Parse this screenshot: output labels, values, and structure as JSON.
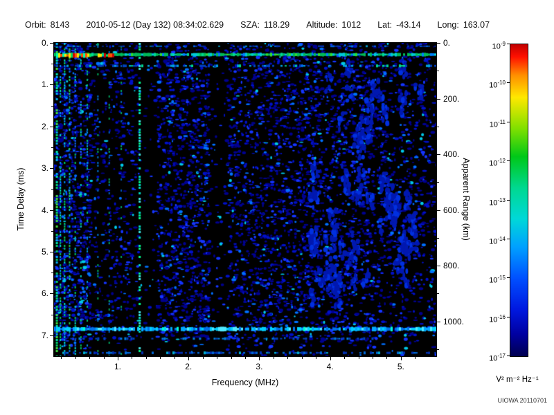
{
  "header": {
    "orbit_label": "Orbit:",
    "orbit_value": "8143",
    "datetime_value": "2010-05-12 (Day 132) 08:34:02.629",
    "sza_label": "SZA:",
    "sza_value": "118.29",
    "altitude_label": "Altitude:",
    "altitude_value": "1012",
    "lat_label": "Lat:",
    "lat_value": "-43.14",
    "long_label": "Long:",
    "long_value": "163.07"
  },
  "footer": {
    "credit": "UIOWA 20110701"
  },
  "chart_data": {
    "type": "heatmap",
    "summary": "Radar sounder ionogram spectrogram: mostly dark field of faint blue noise blobs, dense cyan-green vertical plasma-line streaks below ~0.6 MHz, a bright multicolor horizontal band near 0.3 ms delay, a bright cyan horizontal echo band near 6.85 ms (~1000 km apparent range), dark vertical gaps near 1.4 and 2.4 MHz, and a dashed cyan vertical line near 1.3 MHz.",
    "background": "#000000",
    "x_axis": {
      "label": "Frequency (MHz)",
      "min": 0.1,
      "max": 5.5,
      "major_ticks": [
        1,
        2,
        3,
        4,
        5
      ],
      "tick_labels": [
        "1.",
        "2.",
        "3.",
        "4.",
        "5."
      ],
      "minor_step": 0.2
    },
    "y_axis": {
      "label": "Time Delay (ms)",
      "min": 0,
      "max": 7.5,
      "major_ticks": [
        0,
        1,
        2,
        3,
        4,
        5,
        6,
        7
      ],
      "tick_labels": [
        "0.",
        "1.",
        "2.",
        "3.",
        "4.",
        "5.",
        "6.",
        "7."
      ],
      "minor_step": 0.5
    },
    "y2_axis": {
      "label": "Apparent Range (km)",
      "min": 0,
      "max": 1125,
      "major_ticks": [
        0,
        200,
        400,
        600,
        800,
        1000
      ],
      "tick_labels": [
        "0.",
        "200.",
        "400.",
        "600.",
        "800.",
        "1000."
      ],
      "minor_step": 100
    },
    "colorbar": {
      "base": "10",
      "tick_exponents": [
        "-9",
        "-10",
        "-11",
        "-12",
        "-13",
        "-14",
        "-15",
        "-16",
        "-17"
      ],
      "unit_label": "V² m⁻² Hz⁻¹",
      "gradient_stops": [
        [
          0,
          "#c00000"
        ],
        [
          0.04,
          "#ff1000"
        ],
        [
          0.1,
          "#ff9000"
        ],
        [
          0.17,
          "#ffe800"
        ],
        [
          0.27,
          "#80e000"
        ],
        [
          0.36,
          "#00c818"
        ],
        [
          0.46,
          "#00d890"
        ],
        [
          0.56,
          "#00d8d8"
        ],
        [
          0.65,
          "#00a0ff"
        ],
        [
          0.75,
          "#0050ff"
        ],
        [
          0.85,
          "#0018e0"
        ],
        [
          0.93,
          "#0000a0"
        ],
        [
          1,
          "#000050"
        ]
      ]
    },
    "features": {
      "seed": 1337,
      "noise": {
        "attempts": 9000,
        "palette": [
          [
            "#000090",
            0.5
          ],
          [
            "#0010c8",
            0.75
          ],
          [
            "#1535ff",
            0.9
          ],
          [
            "#0070ff",
            0.975
          ],
          [
            "#00c8e8",
            1.0
          ]
        ],
        "density_regions": [
          {
            "f0": 0.1,
            "f1": 0.62,
            "density": 1.0
          },
          {
            "f0": 0.62,
            "f1": 1.3,
            "density": 0.38
          },
          {
            "f0": 1.3,
            "f1": 1.56,
            "density": 0.12
          },
          {
            "f0": 1.56,
            "f1": 2.3,
            "density": 0.8
          },
          {
            "f0": 2.3,
            "f1": 2.55,
            "density": 0.15
          },
          {
            "f0": 2.55,
            "f1": 3.75,
            "density": 0.75
          },
          {
            "f0": 3.75,
            "f1": 4.8,
            "density": 0.65
          },
          {
            "f0": 4.8,
            "f1": 5.5,
            "density": 0.45
          }
        ],
        "deep_time_cutoff_ms": 7.15,
        "deep_time_density": 0.3
      },
      "clusters": {
        "count": 70,
        "f0": 3.7,
        "f1": 5.25,
        "t0": 0.5,
        "t1": 6.2,
        "blob_per": 10,
        "color": "#0018b0",
        "color2": "#0030e0"
      },
      "vertical_streaks": [
        {
          "f": 0.14,
          "width": 3,
          "duty": 0.7,
          "colors": [
            "#00d070",
            "#00e8b0",
            "#40e040",
            "#00b0ff"
          ]
        },
        {
          "f": 0.19,
          "width": 2,
          "duty": 0.6,
          "colors": [
            "#00c060",
            "#00e0c0",
            "#0090ff"
          ]
        },
        {
          "f": 0.25,
          "width": 2,
          "duty": 0.55,
          "colors": [
            "#00cc66",
            "#00d8d0",
            "#0080ff"
          ]
        },
        {
          "f": 0.32,
          "width": 2,
          "duty": 0.5,
          "colors": [
            "#20d050",
            "#00c8c8",
            "#0070e8"
          ]
        },
        {
          "f": 0.4,
          "width": 2,
          "duty": 0.45,
          "colors": [
            "#00c060",
            "#00d0d0",
            "#1060ff"
          ]
        },
        {
          "f": 0.48,
          "width": 2,
          "duty": 0.4,
          "colors": [
            "#00b858",
            "#00c8c0",
            "#2050ff"
          ]
        },
        {
          "f": 0.57,
          "width": 2,
          "duty": 0.35,
          "colors": [
            "#00c070",
            "#0090e0"
          ]
        },
        {
          "f": 0.72,
          "width": 2,
          "duty": 0.25,
          "colors": [
            "#00a858",
            "#0070d0"
          ]
        },
        {
          "f": 0.88,
          "width": 2,
          "duty": 0.22,
          "colors": [
            "#00a060",
            "#0060c8"
          ]
        },
        {
          "f": 1.05,
          "width": 2,
          "duty": 0.2,
          "colors": [
            "#00a060",
            "#0058c0"
          ]
        },
        {
          "f": 1.31,
          "width": 3,
          "duty": 0.6,
          "colors": [
            "#00e0c8",
            "#00ff90",
            "#40e8e8"
          ]
        }
      ],
      "horizontal_bands": [
        {
          "t": 0.08,
          "f0": 0.1,
          "f1": 5.5,
          "thickness": 2,
          "duty": 0.45,
          "palette": [
            [
              "#0030b0",
              0.6
            ],
            [
              "#0060e0",
              0.9
            ],
            [
              "#00a0d0",
              1
            ]
          ]
        },
        {
          "t": 0.28,
          "f0": 0.1,
          "f1": 5.5,
          "thickness": 4,
          "duty": 0.93,
          "palette": [
            [
              "#00b858",
              0.45
            ],
            [
              "#00d890",
              0.62
            ],
            [
              "#00c8d8",
              0.8
            ],
            [
              "#30e030",
              0.9
            ],
            [
              "#0080ff",
              1
            ]
          ]
        },
        {
          "t": 0.3,
          "f0": 0.1,
          "f1": 0.95,
          "thickness": 5,
          "duty": 0.8,
          "palette": [
            [
              "#ffe000",
              0.35
            ],
            [
              "#ff5000",
              0.55
            ],
            [
              "#d00000",
              0.7
            ],
            [
              "#00e060",
              0.85
            ],
            [
              "#00ffb0",
              1
            ]
          ]
        },
        {
          "t": 0.55,
          "f0": 0.1,
          "f1": 5.5,
          "thickness": 3,
          "duty": 0.4,
          "palette": [
            [
              "#0040c0",
              0.5
            ],
            [
              "#00a0e0",
              0.85
            ],
            [
              "#00d890",
              1
            ]
          ]
        },
        {
          "t": 6.85,
          "f0": 0.1,
          "f1": 5.5,
          "thickness": 5,
          "duty": 0.88,
          "palette": [
            [
              "#00a8ff",
              0.3
            ],
            [
              "#00d0ff",
              0.6
            ],
            [
              "#50e8ff",
              0.75
            ],
            [
              "#0070e8",
              0.92
            ],
            [
              "#00ffd0",
              1
            ]
          ]
        },
        {
          "t": 7.08,
          "f0": 0.3,
          "f1": 4.6,
          "thickness": 3,
          "duty": 0.3,
          "palette": [
            [
              "#0040c0",
              0.6
            ],
            [
              "#0080e0",
              1
            ]
          ]
        },
        {
          "t": 7.42,
          "f0": 0.1,
          "f1": 5.5,
          "thickness": 3,
          "duty": 0.4,
          "palette": [
            [
              "#0030b0",
              0.5
            ],
            [
              "#0068d8",
              0.85
            ],
            [
              "#00b0d0",
              1
            ]
          ]
        }
      ]
    }
  }
}
